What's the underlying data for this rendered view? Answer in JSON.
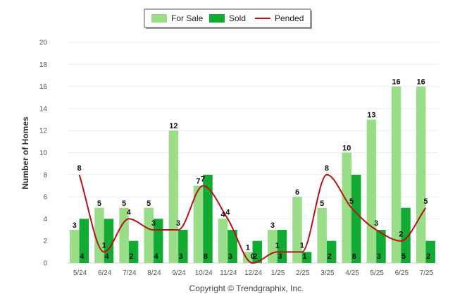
{
  "chart_data": {
    "type": "bar",
    "title": "",
    "xlabel": "",
    "ylabel": "Number of Homes",
    "ylim": [
      0,
      20
    ],
    "yticks": [
      0,
      2,
      4,
      6,
      8,
      10,
      12,
      14,
      16,
      18,
      20
    ],
    "grid": true,
    "legend_position": "top-center",
    "categories": [
      "5/24",
      "6/24",
      "7/24",
      "8/24",
      "9/24",
      "10/24",
      "11/24",
      "12/24",
      "1/25",
      "2/25",
      "3/25",
      "4/25",
      "5/25",
      "6/25",
      "7/25"
    ],
    "series": [
      {
        "name": "For Sale",
        "kind": "bar",
        "color": "#99dd88",
        "values": [
          3,
          5,
          5,
          5,
          12,
          7,
          4,
          1,
          3,
          6,
          5,
          10,
          13,
          16,
          16
        ]
      },
      {
        "name": "Sold",
        "kind": "bar",
        "color": "#11aa33",
        "values": [
          4,
          4,
          2,
          4,
          3,
          8,
          3,
          2,
          3,
          1,
          2,
          8,
          3,
          5,
          2
        ]
      },
      {
        "name": "Pended",
        "kind": "line",
        "color": "#bb1111",
        "values": [
          8,
          1,
          4,
          3,
          3,
          7,
          4,
          0,
          1,
          1,
          8,
          5,
          3,
          2,
          5
        ]
      }
    ]
  },
  "footer": {
    "copyright": "Copyright © Trendgraphix, Inc."
  }
}
